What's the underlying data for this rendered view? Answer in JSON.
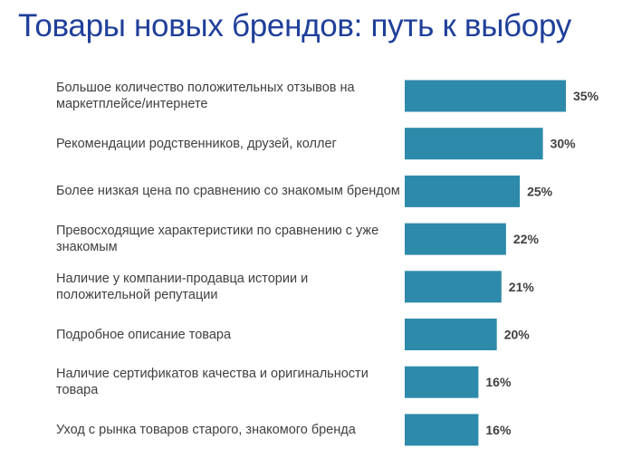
{
  "chart_data": {
    "type": "bar",
    "orientation": "horizontal",
    "title": "Товары новых брендов: путь к выбору",
    "categories": [
      "Большое количество положительных отзывов на маркетплейсе/интернете",
      "Рекомендации родственников, друзей, коллег",
      "Более низкая цена по сравнению со знакомым брендом",
      "Превосходящие характеристики по сравнению с уже знакомым",
      "Наличие у компании-продавца истории и положительной репутации",
      "Подробное описание товара",
      "Наличие сертификатов качества и оригинальности товара",
      "Уход с рынка товаров старого, знакомого бренда"
    ],
    "values": [
      35,
      30,
      25,
      22,
      21,
      20,
      16,
      16
    ],
    "value_labels": [
      "35%",
      "30%",
      "25%",
      "22%",
      "21%",
      "20%",
      "16%",
      "16%"
    ],
    "xlim": [
      0,
      35
    ],
    "grid": false,
    "bar_color": "#2e8aaa"
  }
}
